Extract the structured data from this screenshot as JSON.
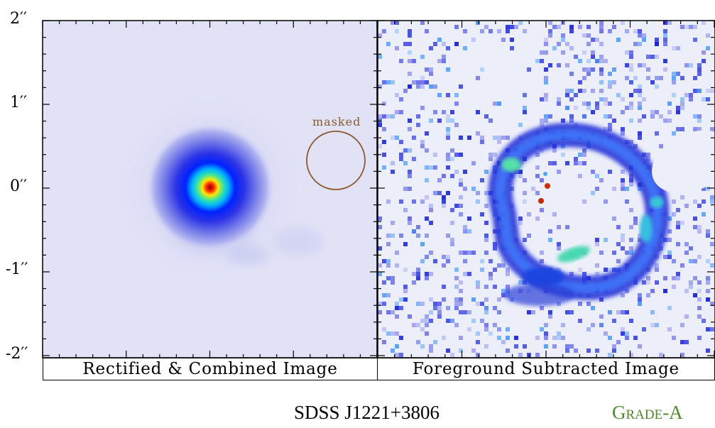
{
  "figure": {
    "object_name": "SDSS J1221+3806",
    "grade": "Grade-A",
    "mask_annotation": "masked",
    "mask_color": "#8a5a2b",
    "grade_color": "#4e8a2c",
    "y_axis_ticks": [
      "2′′",
      "1′′",
      "0′′",
      "-1′′",
      "-2′′"
    ],
    "panels": [
      {
        "caption": "Rectified & Combined Image"
      },
      {
        "caption": "Foreground Subtracted Image"
      }
    ]
  }
}
